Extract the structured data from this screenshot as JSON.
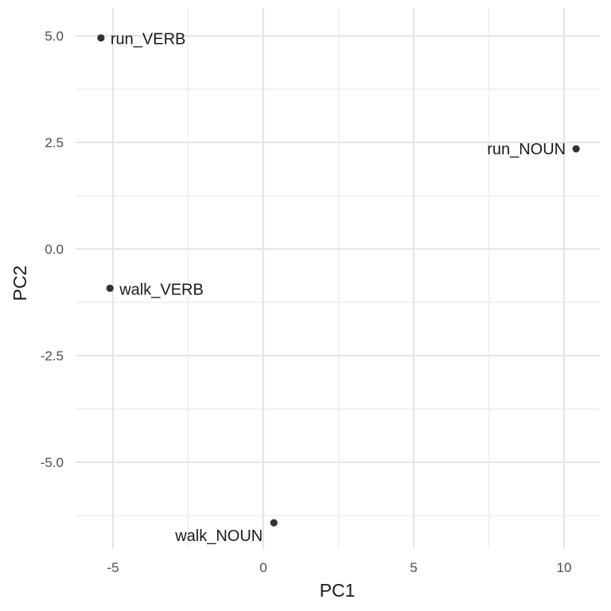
{
  "chart_data": {
    "type": "scatter",
    "title": "",
    "xlabel": "PC1",
    "ylabel": "PC2",
    "xlim": [
      -6.2,
      11.2
    ],
    "ylim": [
      -6.8,
      5.6
    ],
    "x_ticks": [
      -5,
      0,
      5,
      10
    ],
    "x_tick_labels": [
      "-5",
      "0",
      "5",
      "10"
    ],
    "y_ticks": [
      -5,
      -2.5,
      0,
      2.5,
      5
    ],
    "y_tick_labels": [
      "-5.0",
      "-2.5",
      "0.0",
      "2.5",
      "5.0"
    ],
    "grid": true,
    "legend": "none",
    "point_color": "#333333",
    "points": [
      {
        "label": "run_VERB",
        "x": -5.4,
        "y": 4.95,
        "label_side": "right"
      },
      {
        "label": "run_NOUN",
        "x": 10.4,
        "y": 2.35,
        "label_side": "left"
      },
      {
        "label": "walk_VERB",
        "x": -5.1,
        "y": -0.92,
        "label_side": "right"
      },
      {
        "label": "walk_NOUN",
        "x": 0.35,
        "y": -6.42,
        "label_side": "below-left"
      }
    ]
  }
}
